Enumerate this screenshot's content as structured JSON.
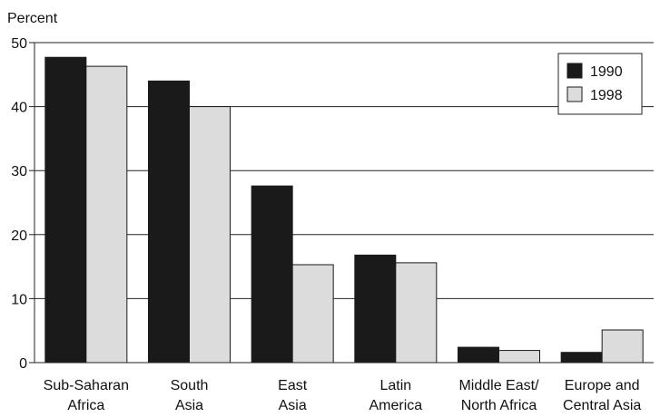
{
  "chart_data": {
    "type": "bar",
    "title": "",
    "ylabel": "Percent",
    "xlabel": "",
    "ylim": [
      0,
      50
    ],
    "yticks": [
      0,
      10,
      20,
      30,
      40,
      50
    ],
    "grid": "horizontal",
    "legend_position": "top-right",
    "categories": [
      [
        "Sub-Saharan",
        "Africa"
      ],
      [
        "South",
        "Asia"
      ],
      [
        "East",
        "Asia"
      ],
      [
        "Latin",
        "America"
      ],
      [
        "Middle East/",
        "North Africa"
      ],
      [
        "Europe and",
        "Central Asia"
      ]
    ],
    "series": [
      {
        "name": "1990",
        "color": "#1a1a1a",
        "values": [
          47.7,
          44.0,
          27.6,
          16.8,
          2.4,
          1.6
        ]
      },
      {
        "name": "1998",
        "color": "#dcdcdc",
        "values": [
          46.3,
          40.0,
          15.3,
          15.6,
          1.9,
          5.1
        ]
      }
    ]
  }
}
